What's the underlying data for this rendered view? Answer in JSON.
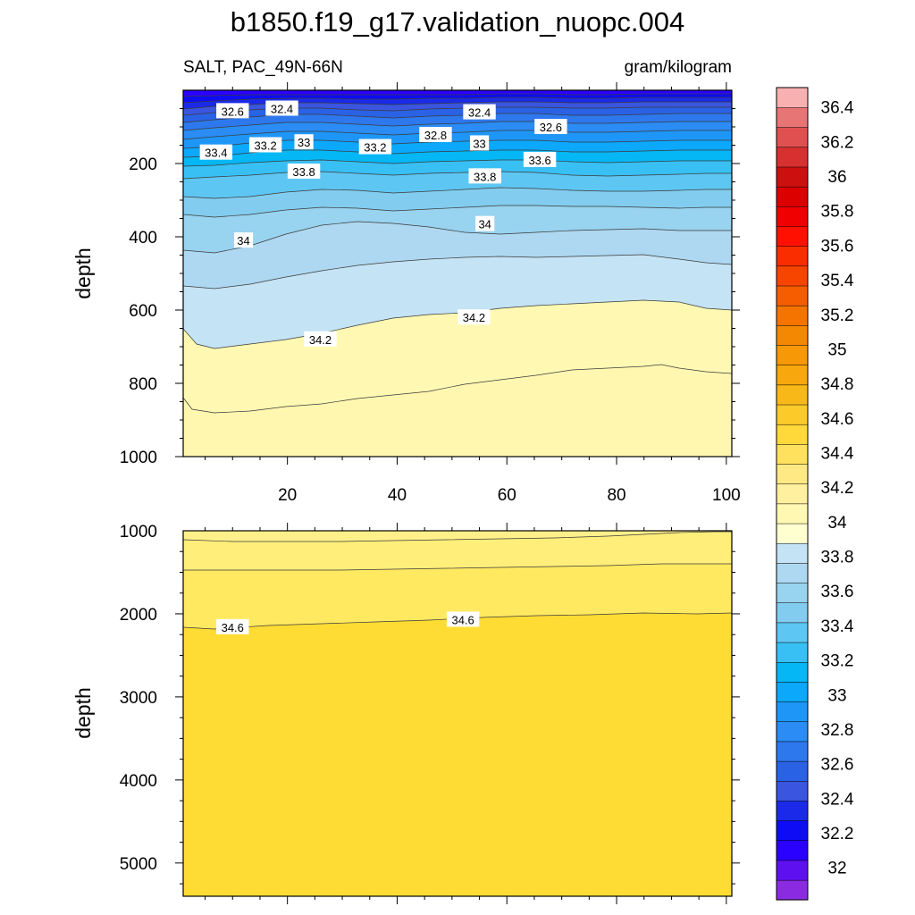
{
  "chart_data": {
    "type": "contour",
    "title": "b1850.f19_g17.validation_nuopc.004",
    "subtitle_left": "SALT, PAC_49N-66N",
    "subtitle_right": "gram/kilogram",
    "ylabel": "depth",
    "xlabel": "",
    "xlim": [
      1,
      101
    ],
    "x_ticks": [
      "20",
      "40",
      "60",
      "80",
      "100"
    ],
    "panels": [
      {
        "name": "upper",
        "ylim": [
          0,
          1000
        ],
        "y_inverted": true,
        "y_ticks": [
          "200",
          "400",
          "600",
          "800",
          "1000"
        ],
        "contour_labels": [
          {
            "text": "32.6",
            "x": 10,
            "y": 57
          },
          {
            "text": "32.4",
            "x": 19,
            "y": 50
          },
          {
            "text": "32.4",
            "x": 55,
            "y": 60
          },
          {
            "text": "32.6",
            "x": 68,
            "y": 100
          },
          {
            "text": "32.8",
            "x": 47,
            "y": 122
          },
          {
            "text": "33",
            "x": 23,
            "y": 142
          },
          {
            "text": "33",
            "x": 55,
            "y": 145
          },
          {
            "text": "33.2",
            "x": 16,
            "y": 150
          },
          {
            "text": "33.2",
            "x": 36,
            "y": 155
          },
          {
            "text": "33.4",
            "x": 7,
            "y": 170
          },
          {
            "text": "33.6",
            "x": 66,
            "y": 190
          },
          {
            "text": "33.8",
            "x": 23,
            "y": 222
          },
          {
            "text": "33.8",
            "x": 56,
            "y": 235
          },
          {
            "text": "34",
            "x": 56,
            "y": 365
          },
          {
            "text": "34",
            "x": 12,
            "y": 410
          },
          {
            "text": "34.2",
            "x": 54,
            "y": 620
          },
          {
            "text": "34.2",
            "x": 26,
            "y": 680
          }
        ]
      },
      {
        "name": "lower",
        "ylim": [
          1000,
          5400
        ],
        "y_inverted": true,
        "y_ticks": [
          "1000",
          "2000",
          "3000",
          "4000",
          "5000"
        ],
        "contour_labels": [
          {
            "text": "34.6",
            "x": 10,
            "y": 2160
          },
          {
            "text": "34.6",
            "x": 52,
            "y": 2070
          }
        ]
      }
    ],
    "colorbar": {
      "labels": [
        "32",
        "32.2",
        "32.4",
        "32.6",
        "32.8",
        "33",
        "33.2",
        "33.4",
        "33.6",
        "33.8",
        "34",
        "34.2",
        "34.4",
        "34.6",
        "34.8",
        "35",
        "35.2",
        "35.4",
        "35.6",
        "35.8",
        "36",
        "36.2",
        "36.4"
      ],
      "colors_bottom_to_top": [
        "#8a2be2",
        "#5f10f0",
        "#2a00ff",
        "#0d0cf4",
        "#1a2ae8",
        "#3a55e0",
        "#2a62e6",
        "#2e78ee",
        "#2a8cf4",
        "#1e96f8",
        "#0ba8fc",
        "#05b7f5",
        "#38c0f4",
        "#5ec6f2",
        "#82cdef",
        "#98d3ef",
        "#aed8f1",
        "#c4e3f5",
        "#ffffd0",
        "#fff8b3",
        "#fff0a0",
        "#ffe985",
        "#ffe15e",
        "#ffd83a",
        "#fccb2a",
        "#f8b817",
        "#f8a80c",
        "#f79806",
        "#f58802",
        "#f57400",
        "#f55d00",
        "#f74500",
        "#fa2d00",
        "#ff1000",
        "#f00000",
        "#dc0000",
        "#cc1010",
        "#d83030",
        "#e05050",
        "#e87575",
        "#f8b0b0"
      ]
    }
  }
}
